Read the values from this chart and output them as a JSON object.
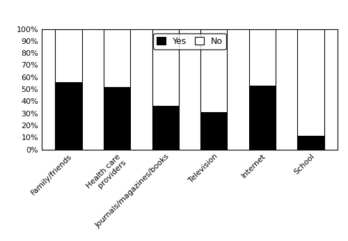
{
  "categories": [
    "Family/friends",
    "Health care\nproviders",
    "Journals/magazines/books",
    "Television",
    "Internet",
    "School"
  ],
  "yes_values": [
    56,
    52,
    36,
    31,
    53,
    11
  ],
  "no_values": [
    44,
    48,
    64,
    69,
    47,
    89
  ],
  "yes_color": "#000000",
  "no_color": "#ffffff",
  "bar_edge_color": "#000000",
  "ytick_labels": [
    "0%",
    "10%",
    "20%",
    "30%",
    "40%",
    "50%",
    "60%",
    "70%",
    "80%",
    "90%",
    "100%"
  ],
  "ytick_values": [
    0,
    10,
    20,
    30,
    40,
    50,
    60,
    70,
    80,
    90,
    100
  ],
  "ylim": [
    0,
    100
  ],
  "bar_width": 0.55,
  "figwidth": 5.0,
  "figheight": 3.46,
  "dpi": 100
}
